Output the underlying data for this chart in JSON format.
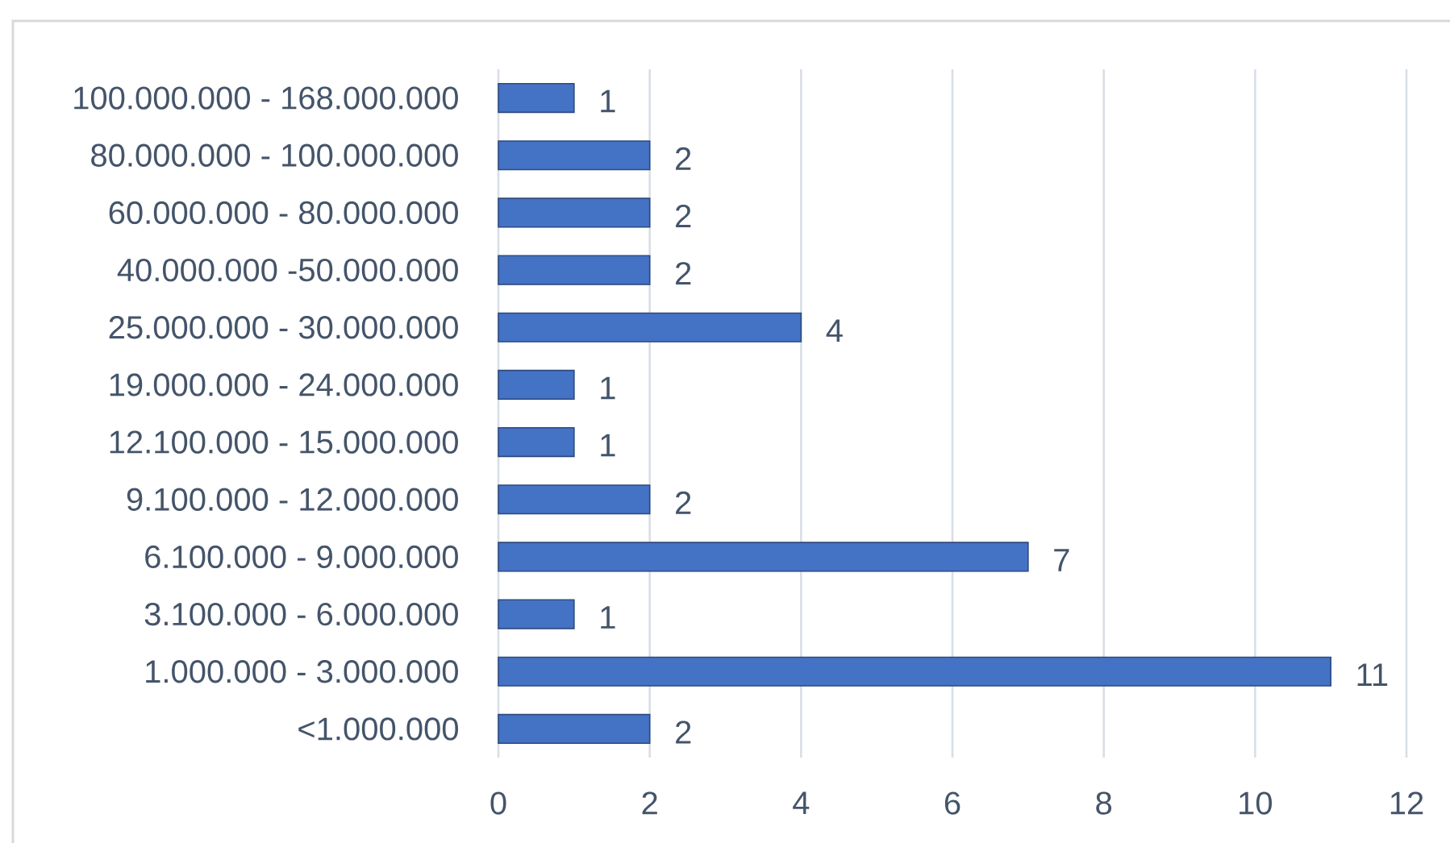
{
  "chart_data": {
    "type": "bar",
    "orientation": "horizontal",
    "categories": [
      "100.000.000 - 168.000.000",
      "80.000.000 - 100.000.000",
      "60.000.000 - 80.000.000",
      "40.000.000 -50.000.000",
      "25.000.000 - 30.000.000",
      "19.000.000 - 24.000.000",
      "12.100.000 - 15.000.000",
      "9.100.000 - 12.000.000",
      "6.100.000 - 9.000.000",
      "3.100.000 - 6.000.000",
      "1.000.000 - 3.000.000",
      "<1.000.000"
    ],
    "values": [
      1,
      2,
      2,
      2,
      4,
      1,
      1,
      2,
      7,
      1,
      11,
      2
    ],
    "color": "#4472c4",
    "xlim": [
      0,
      12
    ],
    "xticks": [
      0,
      2,
      4,
      6,
      8,
      10,
      12
    ],
    "grid": "x",
    "data_labels": true
  }
}
